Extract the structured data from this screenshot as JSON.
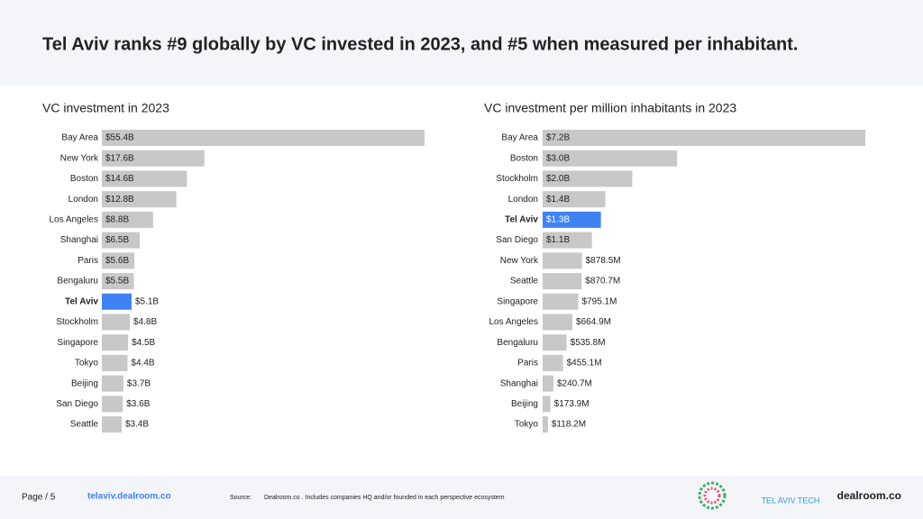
{
  "header": {
    "title": "Tel Aviv ranks #9 globally by VC invested in 2023, and #5 when measured per inhabitant."
  },
  "chart_data": [
    {
      "type": "hbar",
      "title": "VC investment in 2023",
      "categories": [
        "Bay Area",
        "New York",
        "Boston",
        "London",
        "Los Angeles",
        "Shanghai",
        "Paris",
        "Bengaluru",
        "Tel Aviv",
        "Stockholm",
        "Singapore",
        "Tokyo",
        "Beijing",
        "San Diego",
        "Seattle"
      ],
      "values": [
        55.4,
        17.6,
        14.6,
        12.8,
        8.8,
        6.5,
        5.6,
        5.5,
        5.1,
        4.8,
        4.5,
        4.4,
        3.7,
        3.6,
        3.4
      ],
      "value_labels": [
        "$55.4B",
        "$17.6B",
        "$14.6B",
        "$12.8B",
        "$8.8B",
        "$6.5B",
        "$5.6B",
        "$5.5B",
        "$5.1B",
        "$4.8B",
        "$4.5B",
        "$4.4B",
        "$3.7B",
        "$3.6B",
        "$3.4B"
      ],
      "colors": [
        "#c8c8c8",
        "#c8c8c8",
        "#c8c8c8",
        "#c8c8c8",
        "#c8c8c8",
        "#c8c8c8",
        "#c8c8c8",
        "#c8c8c8",
        "#3f82f2",
        "#c8c8c8",
        "#c8c8c8",
        "#c8c8c8",
        "#c8c8c8",
        "#c8c8c8",
        "#c8c8c8"
      ]
    },
    {
      "type": "hbar",
      "title": "VC investment per million inhabitants in 2023",
      "categories": [
        "Bay Area",
        "Boston",
        "Stockholm",
        "London",
        "Tel Aviv",
        "San Diego",
        "New York",
        "Seattle",
        "Singapore",
        "Los Angeles",
        "Bengaluru",
        "Paris",
        "Shanghai",
        "Beijing",
        "Tokyo"
      ],
      "values": [
        7200,
        3000,
        2000,
        1400,
        1300,
        1100,
        878.5,
        870.7,
        795.1,
        664.9,
        535.8,
        455.1,
        240.7,
        173.9,
        118.2
      ],
      "value_labels": [
        "$7.2B",
        "$3.0B",
        "$2.0B",
        "$1.4B",
        "$1.3B",
        "$1.1B",
        "$878.5M",
        "$870.7M",
        "$795.1M",
        "$664.9M",
        "$535.8M",
        "$455.1M",
        "$240.7M",
        "$173.9M",
        "$118.2M"
      ],
      "colors": [
        "#c8c8c8",
        "#c8c8c8",
        "#c8c8c8",
        "#c8c8c8",
        "#3f82f2",
        "#c8c8c8",
        "#c8c8c8",
        "#c8c8c8",
        "#c8c8c8",
        "#c8c8c8",
        "#c8c8c8",
        "#c8c8c8",
        "#c8c8c8",
        "#c8c8c8",
        "#c8c8c8"
      ]
    }
  ],
  "footer": {
    "page": "Page / 5",
    "site": "telaviv.dealroom.co",
    "source_label": "Source:",
    "source": "Dealroom.co . Includes companies HQ and/or founded in each perspective ecosystem",
    "logos": [
      "TEL AVIV TECH",
      "dealroom.co"
    ]
  }
}
